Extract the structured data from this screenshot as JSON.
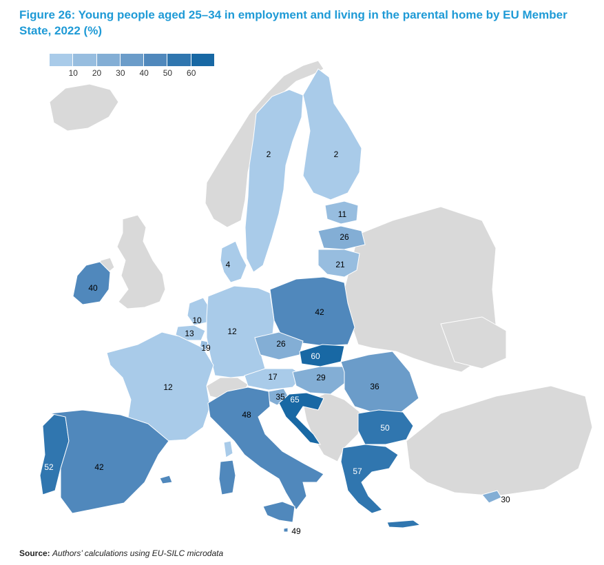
{
  "title": "Figure 26: Young people aged 25–34 in employment and living in the parental home by EU Member State, 2022 (%)",
  "legend": {
    "ticks": [
      "10",
      "20",
      "30",
      "40",
      "50",
      "60"
    ],
    "colors": [
      "#a9cbe9",
      "#97bddf",
      "#83aed5",
      "#6b9cc9",
      "#5088bc",
      "#3076af",
      "#1868a4"
    ]
  },
  "colors": {
    "non_eu": "#d9d9d9",
    "title": "#1e9ad6"
  },
  "countries": [
    {
      "name": "Sweden",
      "value": "2"
    },
    {
      "name": "Finland",
      "value": "2"
    },
    {
      "name": "Estonia",
      "value": "11"
    },
    {
      "name": "Latvia",
      "value": "26"
    },
    {
      "name": "Lithuania",
      "value": "21"
    },
    {
      "name": "Denmark",
      "value": "4"
    },
    {
      "name": "Ireland",
      "value": "40"
    },
    {
      "name": "Poland",
      "value": "42"
    },
    {
      "name": "Netherlands",
      "value": "10"
    },
    {
      "name": "Belgium",
      "value": "13"
    },
    {
      "name": "Luxembourg",
      "value": "19"
    },
    {
      "name": "Germany",
      "value": "12"
    },
    {
      "name": "Czechia",
      "value": "26"
    },
    {
      "name": "Slovakia",
      "value": "60"
    },
    {
      "name": "France",
      "value": "12"
    },
    {
      "name": "Austria",
      "value": "17"
    },
    {
      "name": "Hungary",
      "value": "29"
    },
    {
      "name": "Romania",
      "value": "36"
    },
    {
      "name": "Slovenia",
      "value": "35"
    },
    {
      "name": "Croatia",
      "value": "65"
    },
    {
      "name": "Italy",
      "value": "48"
    },
    {
      "name": "Bulgaria",
      "value": "50"
    },
    {
      "name": "Portugal",
      "value": "52"
    },
    {
      "name": "Spain",
      "value": "42"
    },
    {
      "name": "Greece",
      "value": "57"
    },
    {
      "name": "Cyprus",
      "value": "30"
    },
    {
      "name": "Malta",
      "value": "49"
    }
  ],
  "source": {
    "label": "Source:",
    "text": "Authors’ calculations using EU-SILC microdata"
  }
}
